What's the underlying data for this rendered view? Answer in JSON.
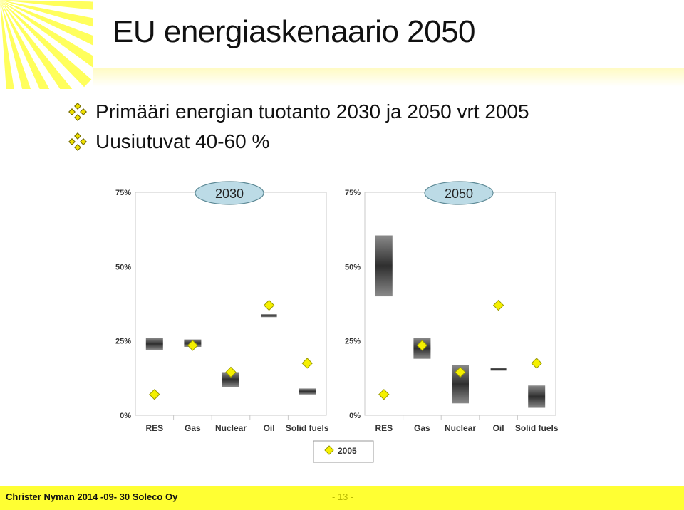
{
  "slide": {
    "title": "EU energiaskenaario 2050",
    "bullets": [
      "Primääri energian tuotanto 2030 ja 2050 vrt 2005",
      "Uusiutuvat 40-60 %"
    ],
    "footer_left": "Christer Nyman 2014 -09- 30 Soleco Oy",
    "page_number": "- 13 -"
  },
  "colors": {
    "marker": "#f5f000",
    "sun": "#ffff40",
    "footer": "#ffff33"
  },
  "chart_data": [
    {
      "type": "range-bar",
      "title": "2030",
      "categories": [
        "RES",
        "Gas",
        "Nuclear",
        "Oil",
        "Solid fuels"
      ],
      "ylim": [
        0,
        75
      ],
      "yticks": [
        "0%",
        "25%",
        "50%",
        "75%"
      ],
      "ytick_values": [
        0,
        25,
        50,
        75
      ],
      "ranges": [
        [
          22,
          26
        ],
        [
          23,
          25.5
        ],
        [
          9.5,
          14.5
        ],
        [
          33,
          34
        ],
        [
          7,
          9
        ]
      ],
      "series": [
        {
          "name": "2005",
          "values": [
            7,
            23.5,
            14.5,
            37,
            17.5
          ]
        }
      ]
    },
    {
      "type": "range-bar",
      "title": "2050",
      "categories": [
        "RES",
        "Gas",
        "Nuclear",
        "Oil",
        "Solid fuels"
      ],
      "ylim": [
        0,
        75
      ],
      "yticks": [
        "0%",
        "25%",
        "50%",
        "75%"
      ],
      "ytick_values": [
        0,
        25,
        50,
        75
      ],
      "ranges": [
        [
          40,
          60.5
        ],
        [
          19,
          26
        ],
        [
          4,
          17
        ],
        [
          15,
          16
        ],
        [
          2.5,
          10
        ]
      ],
      "series": [
        {
          "name": "2005",
          "values": [
            7,
            23.5,
            14.5,
            37,
            17.5
          ]
        }
      ]
    }
  ],
  "legend": {
    "label": "2005"
  }
}
